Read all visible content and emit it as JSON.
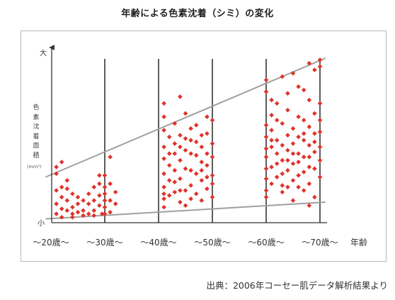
{
  "title": "年齢による色素沈着（シミ）の変化",
  "source": "出典：2006年コーセー肌データ解析結果より",
  "chart_data": {
    "type": "scatter",
    "title": "年齢による色素沈着（シミ）の変化",
    "xlabel": "年齢",
    "ylabel": "色素沈着面積",
    "yunit": "(mm²)",
    "y_top_label": "大",
    "y_bottom_label": "小",
    "x_ticks": [
      "〜20歳〜",
      "〜30歳〜",
      "〜40歳〜",
      "〜50歳〜",
      "〜60歳〜",
      "〜70歳〜"
    ],
    "x_range": [
      20,
      70
    ],
    "y_range": [
      0,
      100
    ],
    "point_color": "#e0332b",
    "trend_color": "#a0a0a0",
    "trend_lines": [
      {
        "name": "upper",
        "x": [
          19,
          71
        ],
        "y": [
          26,
          97
        ]
      },
      {
        "name": "lower",
        "x": [
          19,
          71
        ],
        "y": [
          1,
          11
        ]
      }
    ],
    "groups": [
      {
        "age": 25,
        "points": [
          [
            21,
            32
          ],
          [
            22,
            35
          ],
          [
            21,
            18
          ],
          [
            22,
            14
          ],
          [
            21,
            10
          ],
          [
            22,
            7
          ],
          [
            21,
            4
          ],
          [
            23,
            24
          ],
          [
            23,
            19
          ],
          [
            23,
            12
          ],
          [
            24,
            8
          ],
          [
            24,
            4
          ],
          [
            25,
            14
          ],
          [
            25,
            10
          ],
          [
            26,
            6
          ],
          [
            26,
            3
          ],
          [
            27,
            10
          ],
          [
            27,
            16
          ],
          [
            28,
            12
          ],
          [
            28,
            20
          ],
          [
            28,
            6
          ],
          [
            29,
            22
          ],
          [
            29,
            15
          ],
          [
            29,
            9
          ],
          [
            29.5,
            4
          ],
          [
            30,
            12
          ],
          [
            30,
            27
          ],
          [
            30,
            16
          ],
          [
            30,
            8
          ],
          [
            30,
            20
          ],
          [
            31,
            12
          ],
          [
            31,
            5
          ],
          [
            31,
            38
          ],
          [
            32,
            17
          ],
          [
            32,
            10
          ],
          [
            21,
            28
          ],
          [
            22,
            20
          ],
          [
            23,
            6
          ],
          [
            24,
            16
          ],
          [
            25,
            5
          ],
          [
            26,
            12
          ],
          [
            27,
            4
          ],
          [
            28,
            3
          ],
          [
            29,
            27
          ],
          [
            30,
            4
          ],
          [
            31,
            22
          ],
          [
            22,
            2
          ],
          [
            24,
            2
          ]
        ]
      },
      {
        "age": 45,
        "points": [
          [
            41,
            70
          ],
          [
            41,
            62
          ],
          [
            41,
            54
          ],
          [
            41,
            44
          ],
          [
            41,
            37
          ],
          [
            41,
            28
          ],
          [
            41,
            20
          ],
          [
            41,
            13
          ],
          [
            41,
            8
          ],
          [
            42,
            50
          ],
          [
            42,
            33
          ],
          [
            42,
            24
          ],
          [
            43,
            58
          ],
          [
            43,
            46
          ],
          [
            43,
            40
          ],
          [
            43,
            30
          ],
          [
            43,
            17
          ],
          [
            44,
            74
          ],
          [
            44,
            51
          ],
          [
            44,
            36
          ],
          [
            44,
            25
          ],
          [
            44,
            11
          ],
          [
            45,
            64
          ],
          [
            45,
            49
          ],
          [
            45,
            42
          ],
          [
            45,
            31
          ],
          [
            45,
            18
          ],
          [
            46,
            55
          ],
          [
            46,
            40
          ],
          [
            46,
            21
          ],
          [
            46,
            13
          ],
          [
            47,
            39
          ],
          [
            47,
            47
          ],
          [
            47,
            28
          ],
          [
            47,
            16
          ],
          [
            48,
            44
          ],
          [
            48,
            35
          ],
          [
            48,
            24
          ],
          [
            48,
            12
          ],
          [
            49,
            62
          ],
          [
            49,
            52
          ],
          [
            49,
            33
          ],
          [
            49,
            26
          ],
          [
            49,
            19
          ],
          [
            50,
            60
          ],
          [
            50,
            46
          ],
          [
            50,
            38
          ],
          [
            50,
            27
          ],
          [
            50,
            14
          ],
          [
            41,
            16
          ],
          [
            42,
            40
          ],
          [
            43,
            23
          ],
          [
            44,
            44
          ],
          [
            45,
            9
          ],
          [
            46,
            30
          ],
          [
            47,
            57
          ],
          [
            48,
            51
          ],
          [
            49,
            40
          ],
          [
            50,
            22
          ],
          [
            42,
            15
          ],
          [
            44,
            18
          ],
          [
            46,
            48
          ],
          [
            48,
            30
          ]
        ]
      },
      {
        "age": 65,
        "points": [
          [
            60,
            84
          ],
          [
            60,
            77
          ],
          [
            60,
            57
          ],
          [
            60,
            50
          ],
          [
            60,
            43
          ],
          [
            60,
            38
          ],
          [
            60,
            31
          ],
          [
            60,
            25
          ],
          [
            60,
            18
          ],
          [
            60,
            14
          ],
          [
            61,
            63
          ],
          [
            61,
            54
          ],
          [
            61,
            44
          ],
          [
            61,
            32
          ],
          [
            61,
            22
          ],
          [
            62,
            70
          ],
          [
            62,
            60
          ],
          [
            62,
            48
          ],
          [
            62,
            40
          ],
          [
            62,
            26
          ],
          [
            63,
            58
          ],
          [
            63,
            45
          ],
          [
            63,
            36
          ],
          [
            63,
            28
          ],
          [
            63,
            17
          ],
          [
            64,
            66
          ],
          [
            64,
            51
          ],
          [
            64,
            42
          ],
          [
            64,
            30
          ],
          [
            64,
            20
          ],
          [
            65,
            55
          ],
          [
            65,
            46
          ],
          [
            65,
            34
          ],
          [
            65,
            24
          ],
          [
            65,
            12
          ],
          [
            66,
            62
          ],
          [
            66,
            50
          ],
          [
            66,
            40
          ],
          [
            66,
            35
          ],
          [
            66,
            27
          ],
          [
            67,
            78
          ],
          [
            67,
            60
          ],
          [
            67,
            48
          ],
          [
            67,
            38
          ],
          [
            67,
            29
          ],
          [
            67,
            18
          ],
          [
            68,
            72
          ],
          [
            68,
            56
          ],
          [
            68,
            45
          ],
          [
            68,
            32
          ],
          [
            68,
            22
          ],
          [
            68,
            9
          ],
          [
            69,
            64
          ],
          [
            69,
            52
          ],
          [
            69,
            41
          ],
          [
            69,
            31
          ],
          [
            69,
            14
          ],
          [
            70,
            96
          ],
          [
            70,
            92
          ],
          [
            70,
            70
          ],
          [
            70,
            60
          ],
          [
            70,
            44
          ],
          [
            70,
            36
          ],
          [
            70,
            26
          ],
          [
            63,
            86
          ],
          [
            65,
            88
          ],
          [
            69,
            90
          ],
          [
            68,
            94
          ],
          [
            66,
            80
          ],
          [
            64,
            76
          ],
          [
            61,
            72
          ],
          [
            62,
            34
          ],
          [
            64,
            36
          ],
          [
            66,
            20
          ],
          [
            67,
            52
          ],
          [
            69,
            47
          ],
          [
            70,
            53
          ],
          [
            61,
            48
          ],
          [
            65,
            40
          ],
          [
            63,
            21
          ],
          [
            68,
            38
          ]
        ]
      }
    ]
  }
}
